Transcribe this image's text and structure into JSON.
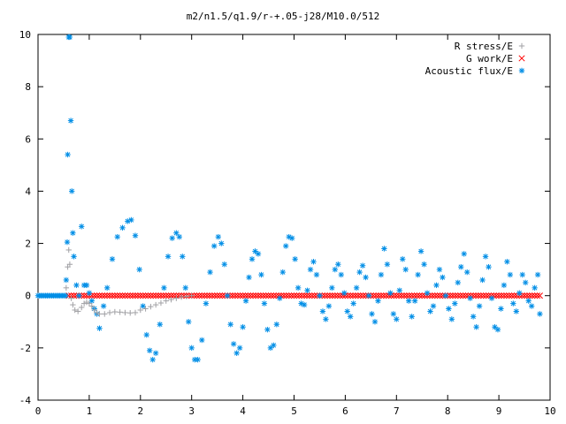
{
  "chart_data": {
    "type": "scatter",
    "title": "m2/n1.5/q1.9/r-+.05-j28/M10.0/512",
    "xlabel": "",
    "ylabel": "",
    "xlim": [
      0,
      10
    ],
    "ylim": [
      -4,
      10
    ],
    "xticks": [
      "0",
      "1",
      "2",
      "3",
      "4",
      "5",
      "6",
      "7",
      "8",
      "9",
      "10"
    ],
    "yticks": [
      "-4",
      "-2",
      "0",
      "2",
      "4",
      "6",
      "8",
      "10"
    ],
    "grid": false,
    "legend_position": "top-right",
    "series": [
      {
        "name": "R stress/E",
        "marker": "plus",
        "color": "#a0a0a4",
        "points": [
          [
            0.55,
            0.3
          ],
          [
            0.58,
            1.1
          ],
          [
            0.6,
            1.75
          ],
          [
            0.62,
            1.2
          ],
          [
            0.65,
            -0.1
          ],
          [
            0.68,
            -0.35
          ],
          [
            0.72,
            -0.55
          ],
          [
            0.78,
            -0.6
          ],
          [
            0.85,
            -0.45
          ],
          [
            0.9,
            -0.3
          ],
          [
            0.95,
            -0.25
          ],
          [
            1.0,
            -0.3
          ],
          [
            1.05,
            -0.4
          ],
          [
            1.1,
            -0.55
          ],
          [
            1.15,
            -0.65
          ],
          [
            1.2,
            -0.7
          ],
          [
            1.3,
            -0.7
          ],
          [
            1.4,
            -0.65
          ],
          [
            1.5,
            -0.62
          ],
          [
            1.6,
            -0.63
          ],
          [
            1.7,
            -0.65
          ],
          [
            1.8,
            -0.66
          ],
          [
            1.9,
            -0.65
          ],
          [
            2.0,
            -0.55
          ],
          [
            2.1,
            -0.5
          ],
          [
            2.2,
            -0.42
          ],
          [
            2.3,
            -0.35
          ],
          [
            2.4,
            -0.28
          ],
          [
            2.5,
            -0.2
          ],
          [
            2.6,
            -0.15
          ],
          [
            2.7,
            -0.1
          ],
          [
            2.8,
            -0.05
          ],
          [
            2.9,
            -0.03
          ],
          [
            3.0,
            0.0
          ]
        ]
      },
      {
        "name": "G work/E",
        "marker": "cross",
        "color": "#ff0000"
      },
      {
        "name": "Acoustic flux/E",
        "marker": "star",
        "color": "#008ee6",
        "points": [
          [
            0.55,
            0.6
          ],
          [
            0.57,
            2.05
          ],
          [
            0.58,
            5.4
          ],
          [
            0.6,
            9.9
          ],
          [
            0.62,
            9.9
          ],
          [
            0.64,
            6.7
          ],
          [
            0.66,
            4.0
          ],
          [
            0.68,
            2.4
          ],
          [
            0.7,
            1.5
          ],
          [
            0.75,
            0.4
          ],
          [
            0.8,
            0.0
          ],
          [
            0.85,
            2.65
          ],
          [
            0.9,
            0.4
          ],
          [
            0.95,
            0.4
          ],
          [
            1.0,
            0.1
          ],
          [
            1.05,
            -0.2
          ],
          [
            1.1,
            -0.5
          ],
          [
            1.15,
            -0.7
          ],
          [
            1.2,
            -1.25
          ],
          [
            1.28,
            -0.4
          ],
          [
            1.35,
            0.3
          ],
          [
            1.45,
            1.4
          ],
          [
            1.55,
            2.25
          ],
          [
            1.65,
            2.6
          ],
          [
            1.75,
            2.85
          ],
          [
            1.82,
            2.9
          ],
          [
            1.9,
            2.3
          ],
          [
            1.98,
            1.0
          ],
          [
            2.05,
            -0.4
          ],
          [
            2.12,
            -1.5
          ],
          [
            2.18,
            -2.1
          ],
          [
            2.24,
            -2.45
          ],
          [
            2.3,
            -2.2
          ],
          [
            2.38,
            -1.1
          ],
          [
            2.46,
            0.3
          ],
          [
            2.54,
            1.5
          ],
          [
            2.62,
            2.2
          ],
          [
            2.7,
            2.4
          ],
          [
            2.76,
            2.25
          ],
          [
            2.82,
            1.5
          ],
          [
            2.88,
            0.3
          ],
          [
            2.94,
            -1.0
          ],
          [
            3.0,
            -2.0
          ],
          [
            3.06,
            -2.45
          ],
          [
            3.12,
            -2.45
          ],
          [
            3.2,
            -1.7
          ],
          [
            3.28,
            -0.3
          ],
          [
            3.36,
            0.9
          ],
          [
            3.44,
            1.9
          ],
          [
            3.52,
            2.25
          ],
          [
            3.58,
            2.0
          ],
          [
            3.64,
            1.2
          ],
          [
            3.7,
            0.0
          ],
          [
            3.76,
            -1.1
          ],
          [
            3.82,
            -1.85
          ],
          [
            3.88,
            -2.2
          ],
          [
            3.94,
            -2.0
          ],
          [
            4.0,
            -1.2
          ],
          [
            4.06,
            -0.2
          ],
          [
            4.12,
            0.7
          ],
          [
            4.18,
            1.4
          ],
          [
            4.24,
            1.7
          ],
          [
            4.3,
            1.6
          ],
          [
            4.36,
            0.8
          ],
          [
            4.42,
            -0.3
          ],
          [
            4.48,
            -1.3
          ],
          [
            4.54,
            -2.0
          ],
          [
            4.6,
            -1.9
          ],
          [
            4.66,
            -1.1
          ],
          [
            4.72,
            -0.1
          ],
          [
            4.78,
            0.9
          ],
          [
            4.84,
            1.9
          ],
          [
            4.9,
            2.25
          ],
          [
            4.96,
            2.2
          ],
          [
            5.02,
            1.4
          ],
          [
            5.08,
            0.3
          ],
          [
            5.14,
            -0.3
          ],
          [
            5.2,
            -0.35
          ],
          [
            5.26,
            0.2
          ],
          [
            5.32,
            1.0
          ],
          [
            5.38,
            1.3
          ],
          [
            5.44,
            0.8
          ],
          [
            5.5,
            0.0
          ],
          [
            5.56,
            -0.6
          ],
          [
            5.62,
            -0.9
          ],
          [
            5.68,
            -0.4
          ],
          [
            5.74,
            0.3
          ],
          [
            5.8,
            1.0
          ],
          [
            5.86,
            1.2
          ],
          [
            5.92,
            0.8
          ],
          [
            5.98,
            0.1
          ],
          [
            6.04,
            -0.6
          ],
          [
            6.1,
            -0.8
          ],
          [
            6.16,
            -0.3
          ],
          [
            6.22,
            0.3
          ],
          [
            6.28,
            0.9
          ],
          [
            6.34,
            1.15
          ],
          [
            6.4,
            0.7
          ],
          [
            6.46,
            0.0
          ],
          [
            6.52,
            -0.7
          ],
          [
            6.58,
            -1.0
          ],
          [
            6.64,
            -0.2
          ],
          [
            6.7,
            0.8
          ],
          [
            6.76,
            1.8
          ],
          [
            6.82,
            1.2
          ],
          [
            6.88,
            0.1
          ],
          [
            6.94,
            -0.7
          ],
          [
            7.0,
            -0.9
          ],
          [
            7.06,
            0.2
          ],
          [
            7.12,
            1.4
          ],
          [
            7.18,
            1.0
          ],
          [
            7.24,
            -0.2
          ],
          [
            7.3,
            -0.8
          ],
          [
            7.36,
            -0.2
          ],
          [
            7.42,
            0.8
          ],
          [
            7.48,
            1.7
          ],
          [
            7.54,
            1.2
          ],
          [
            7.6,
            0.1
          ],
          [
            7.66,
            -0.6
          ],
          [
            7.72,
            -0.4
          ],
          [
            7.78,
            0.4
          ],
          [
            7.84,
            1.0
          ],
          [
            7.9,
            0.7
          ],
          [
            7.96,
            0.0
          ],
          [
            8.02,
            -0.5
          ],
          [
            8.08,
            -0.9
          ],
          [
            8.14,
            -0.3
          ],
          [
            8.2,
            0.5
          ],
          [
            8.26,
            1.1
          ],
          [
            8.32,
            1.6
          ],
          [
            8.38,
            0.9
          ],
          [
            8.44,
            -0.1
          ],
          [
            8.5,
            -0.8
          ],
          [
            8.56,
            -1.2
          ],
          [
            8.62,
            -0.4
          ],
          [
            8.68,
            0.6
          ],
          [
            8.74,
            1.5
          ],
          [
            8.8,
            1.1
          ],
          [
            8.86,
            -0.1
          ],
          [
            8.92,
            -1.2
          ],
          [
            8.98,
            -1.3
          ],
          [
            9.04,
            -0.5
          ],
          [
            9.1,
            0.4
          ],
          [
            9.16,
            1.3
          ],
          [
            9.22,
            0.8
          ],
          [
            9.28,
            -0.3
          ],
          [
            9.34,
            -0.6
          ],
          [
            9.4,
            0.1
          ],
          [
            9.46,
            0.8
          ],
          [
            9.52,
            0.5
          ],
          [
            9.58,
            -0.2
          ],
          [
            9.64,
            -0.4
          ],
          [
            9.7,
            0.3
          ],
          [
            9.76,
            0.8
          ],
          [
            9.8,
            -0.7
          ]
        ]
      }
    ]
  }
}
